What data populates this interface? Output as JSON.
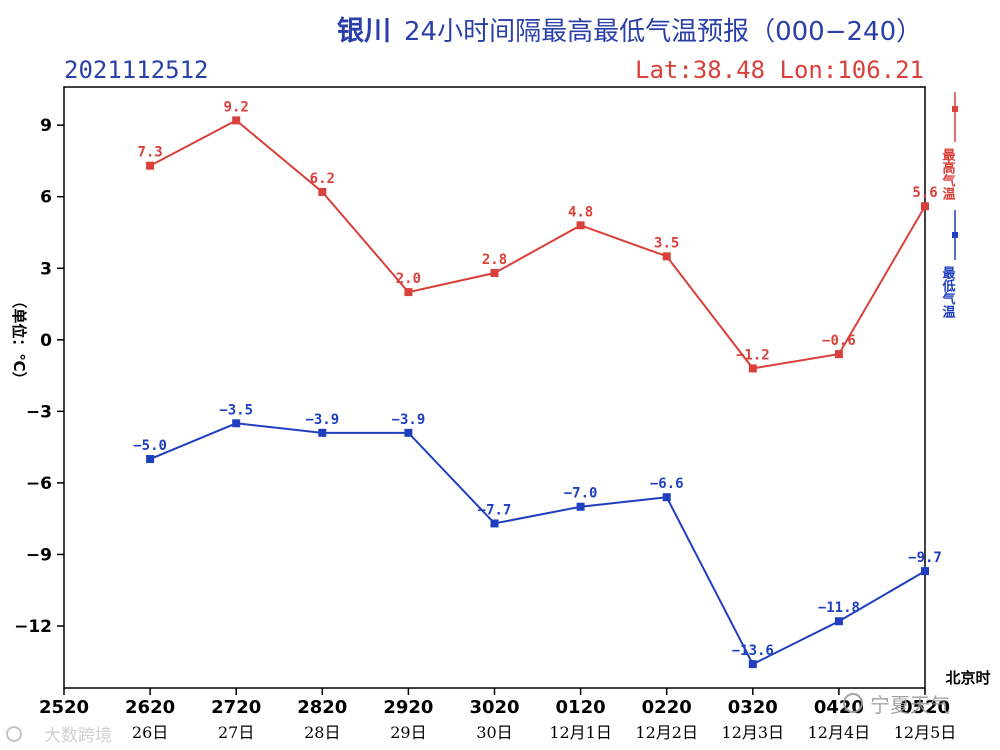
{
  "header": {
    "title_city": "银川",
    "title_rest": "24小时间隔最高最低气温预报（000−240）",
    "run_id": "2021112512",
    "location": "Lat:38.48  Lon:106.21"
  },
  "watermarks": {
    "left": "大数跨境",
    "right": "宁夏天气"
  },
  "colors": {
    "max_series": "#d9403a",
    "min_series": "#1f3fbf",
    "title": "#2b3fa8",
    "location": "#d9403a",
    "axis": "#000000"
  },
  "chart_data": {
    "type": "line",
    "title": "银川24小时间隔最高最低气温预报（000−240）",
    "ylabel": "（单位：℃）",
    "xlabel_unit": "北京时",
    "ylim": [
      -14.6,
      10.6
    ],
    "yticks": [
      9,
      6,
      3,
      0,
      -3,
      -6,
      -9,
      -12
    ],
    "ytick_labels": [
      "9",
      "6",
      "3",
      "0",
      "−3",
      "−6",
      "−9",
      "−12"
    ],
    "x_ticks": [
      "2520",
      "2620",
      "2720",
      "2820",
      "2920",
      "3020",
      "0120",
      "0220",
      "0320",
      "0420",
      "0520"
    ],
    "x_dates": [
      "",
      "26日",
      "27日",
      "28日",
      "29日",
      "30日",
      "12月1日",
      "12月2日",
      "12月3日",
      "12月4日",
      "12月5日"
    ],
    "grid": false,
    "legend_position": "right (vertical text)",
    "series": [
      {
        "name": "最高气温",
        "color": "#d9403a",
        "x_index": [
          1,
          2,
          3,
          4,
          5,
          6,
          7,
          8,
          9,
          10
        ],
        "values": [
          7.3,
          9.2,
          6.2,
          2.0,
          2.8,
          4.8,
          3.5,
          -1.2,
          -0.6,
          5.6
        ],
        "labels": [
          "7.3",
          "9.2",
          "6.2",
          "2.0",
          "2.8",
          "4.8",
          "3.5",
          "−1.2",
          "−0.6",
          "5.6"
        ]
      },
      {
        "name": "最低气温",
        "color": "#1f3fbf",
        "x_index": [
          1,
          2,
          3,
          4,
          5,
          6,
          7,
          8,
          9,
          10
        ],
        "values": [
          -5.0,
          -3.5,
          -3.9,
          -3.9,
          -7.7,
          -7.0,
          -6.6,
          -13.6,
          -11.8,
          -9.7
        ],
        "labels": [
          "−5.0",
          "−3.5",
          "−3.9",
          "−3.9",
          "−7.7",
          "−7.0",
          "−6.6",
          "−13.6",
          "−11.8",
          "−9.7"
        ]
      }
    ]
  }
}
